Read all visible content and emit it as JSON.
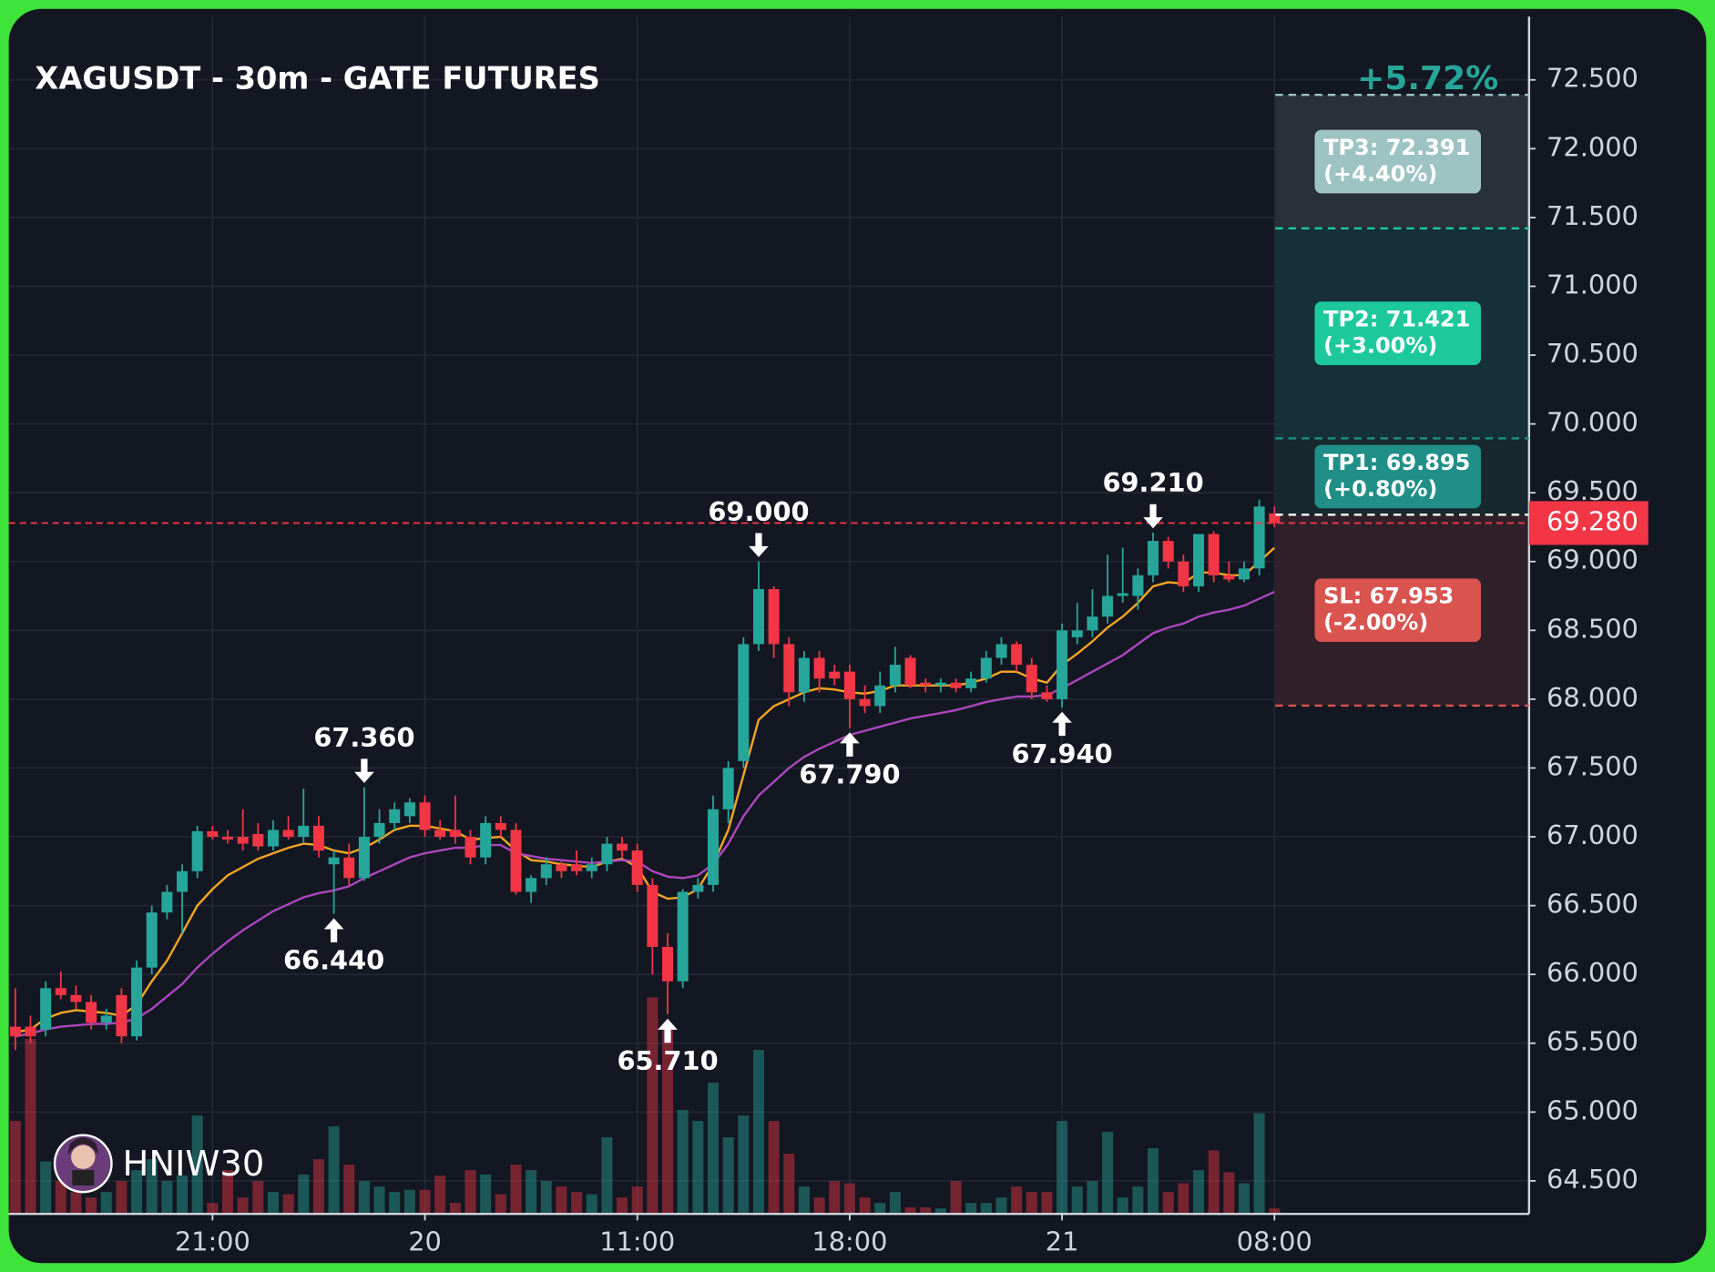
{
  "chart_data": {
    "type": "candlestick",
    "title": "XAGUSDT - 30m - GATE FUTURES",
    "categories": [
      null,
      null,
      null,
      null,
      null,
      null,
      null,
      null,
      null,
      null,
      null,
      null,
      null,
      "21:00",
      null,
      null,
      null,
      null,
      null,
      null,
      null,
      null,
      null,
      null,
      null,
      null,
      null,
      "20",
      null,
      null,
      null,
      null,
      null,
      null,
      null,
      null,
      null,
      null,
      null,
      null,
      null,
      "11:00",
      null,
      null,
      null,
      null,
      null,
      null,
      null,
      null,
      null,
      null,
      null,
      null,
      null,
      "18:00",
      null,
      null,
      null,
      null,
      null,
      null,
      null,
      null,
      null,
      null,
      null,
      null,
      null,
      "21",
      null,
      null,
      null,
      null,
      null,
      null,
      null,
      null,
      null,
      null,
      null,
      null,
      null,
      "08:00"
    ],
    "ohlc": [
      [
        65.62,
        65.9,
        65.45,
        65.55
      ],
      [
        65.62,
        65.7,
        65.5,
        65.55
      ],
      [
        65.6,
        65.95,
        65.55,
        65.9
      ],
      [
        65.9,
        66.02,
        65.82,
        65.85
      ],
      [
        65.85,
        65.92,
        65.75,
        65.8
      ],
      [
        65.8,
        65.85,
        65.6,
        65.65
      ],
      [
        65.65,
        65.75,
        65.6,
        65.7
      ],
      [
        65.85,
        65.9,
        65.5,
        65.55
      ],
      [
        65.55,
        66.1,
        65.52,
        66.05
      ],
      [
        66.05,
        66.5,
        66.0,
        66.45
      ],
      [
        66.45,
        66.65,
        66.4,
        66.6
      ],
      [
        66.6,
        66.8,
        66.3,
        66.75
      ],
      [
        66.75,
        67.08,
        66.7,
        67.04
      ],
      [
        67.04,
        67.08,
        66.98,
        67.0
      ],
      [
        67.0,
        67.05,
        66.95,
        66.98
      ],
      [
        67.0,
        67.2,
        66.9,
        66.95
      ],
      [
        67.02,
        67.1,
        66.9,
        66.93
      ],
      [
        66.93,
        67.12,
        66.9,
        67.05
      ],
      [
        67.05,
        67.15,
        66.98,
        67.0
      ],
      [
        67.0,
        67.35,
        66.95,
        67.08
      ],
      [
        67.08,
        67.15,
        66.85,
        66.9
      ],
      [
        66.8,
        66.9,
        66.44,
        66.85
      ],
      [
        66.85,
        66.95,
        66.65,
        66.7
      ],
      [
        66.7,
        67.36,
        66.68,
        67.0
      ],
      [
        67.0,
        67.2,
        66.95,
        67.1
      ],
      [
        67.1,
        67.25,
        67.05,
        67.2
      ],
      [
        67.15,
        67.28,
        67.1,
        67.25
      ],
      [
        67.25,
        67.3,
        67.0,
        67.05
      ],
      [
        67.05,
        67.12,
        66.98,
        67.0
      ],
      [
        67.05,
        67.3,
        66.95,
        67.0
      ],
      [
        67.0,
        67.05,
        66.8,
        66.85
      ],
      [
        66.85,
        67.15,
        66.8,
        67.1
      ],
      [
        67.1,
        67.15,
        67.0,
        67.05
      ],
      [
        67.05,
        67.1,
        66.58,
        66.6
      ],
      [
        66.6,
        66.72,
        66.52,
        66.7
      ],
      [
        66.7,
        66.85,
        66.65,
        66.8
      ],
      [
        66.8,
        66.82,
        66.7,
        66.75
      ],
      [
        66.8,
        66.9,
        66.72,
        66.75
      ],
      [
        66.75,
        66.85,
        66.7,
        66.8
      ],
      [
        66.8,
        67.0,
        66.75,
        66.95
      ],
      [
        66.95,
        67.0,
        66.85,
        66.9
      ],
      [
        66.9,
        66.95,
        66.6,
        66.65
      ],
      [
        66.65,
        66.7,
        66.0,
        66.2
      ],
      [
        66.2,
        66.3,
        65.71,
        65.95
      ],
      [
        65.95,
        66.62,
        65.9,
        66.6
      ],
      [
        66.6,
        66.7,
        66.55,
        66.65
      ],
      [
        66.65,
        67.3,
        66.6,
        67.2
      ],
      [
        67.2,
        67.55,
        67.1,
        67.5
      ],
      [
        67.55,
        68.45,
        67.5,
        68.4
      ],
      [
        68.4,
        69.0,
        68.35,
        68.8
      ],
      [
        68.8,
        68.82,
        68.3,
        68.4
      ],
      [
        68.4,
        68.45,
        67.95,
        68.05
      ],
      [
        68.05,
        68.35,
        67.98,
        68.3
      ],
      [
        68.3,
        68.35,
        68.05,
        68.15
      ],
      [
        68.2,
        68.25,
        68.1,
        68.15
      ],
      [
        68.2,
        68.25,
        67.79,
        68.0
      ],
      [
        68.0,
        68.1,
        67.9,
        67.95
      ],
      [
        67.95,
        68.2,
        67.9,
        68.1
      ],
      [
        68.1,
        68.38,
        68.05,
        68.25
      ],
      [
        68.3,
        68.32,
        68.08,
        68.1
      ],
      [
        68.12,
        68.15,
        68.05,
        68.1
      ],
      [
        68.1,
        68.15,
        68.05,
        68.12
      ],
      [
        68.12,
        68.15,
        68.05,
        68.08
      ],
      [
        68.08,
        68.2,
        68.05,
        68.15
      ],
      [
        68.15,
        68.35,
        68.12,
        68.3
      ],
      [
        68.3,
        68.45,
        68.25,
        68.4
      ],
      [
        68.4,
        68.42,
        68.2,
        68.25
      ],
      [
        68.25,
        68.3,
        68.0,
        68.05
      ],
      [
        68.05,
        68.1,
        67.98,
        68.0
      ],
      [
        68.0,
        68.55,
        67.94,
        68.5
      ],
      [
        68.45,
        68.7,
        68.4,
        68.5
      ],
      [
        68.5,
        68.8,
        68.45,
        68.6
      ],
      [
        68.6,
        69.05,
        68.55,
        68.75
      ],
      [
        68.75,
        69.1,
        68.7,
        68.77
      ],
      [
        68.75,
        68.95,
        68.65,
        68.9
      ],
      [
        68.9,
        69.21,
        68.85,
        69.15
      ],
      [
        69.15,
        69.18,
        68.95,
        69.0
      ],
      [
        69.0,
        69.05,
        68.78,
        68.82
      ],
      [
        68.82,
        69.2,
        68.78,
        69.2
      ],
      [
        69.2,
        69.22,
        68.85,
        68.9
      ],
      [
        68.9,
        69.0,
        68.85,
        68.87
      ],
      [
        68.87,
        69.0,
        68.85,
        68.95
      ],
      [
        68.95,
        69.45,
        68.9,
        69.4
      ],
      [
        69.35,
        69.4,
        69.25,
        69.28
      ]
    ],
    "up_color": "#26a69a",
    "down_color": "#f23645",
    "volume": [
      85,
      160,
      48,
      30,
      20,
      15,
      20,
      30,
      40,
      50,
      30,
      35,
      90,
      10,
      40,
      15,
      30,
      20,
      18,
      36,
      50,
      80,
      45,
      30,
      25,
      20,
      22,
      22,
      35,
      10,
      40,
      36,
      18,
      45,
      40,
      30,
      25,
      20,
      18,
      70,
      15,
      25,
      198,
      170,
      95,
      85,
      120,
      70,
      90,
      150,
      85,
      55,
      25,
      15,
      30,
      28,
      15,
      10,
      20,
      6,
      6,
      5,
      30,
      10,
      10,
      15,
      25,
      20,
      20,
      85,
      25,
      30,
      75,
      15,
      25,
      60,
      20,
      28,
      40,
      58,
      38,
      28,
      92,
      5
    ],
    "vlim": [
      0,
      200
    ],
    "lines": [
      {
        "color": "#f5a623",
        "values": [
          65.58,
          65.6,
          65.68,
          65.72,
          65.74,
          65.73,
          65.72,
          65.7,
          65.78,
          65.95,
          66.1,
          66.3,
          66.5,
          66.62,
          66.72,
          66.78,
          66.84,
          66.88,
          66.92,
          66.95,
          66.94,
          66.9,
          66.88,
          66.92,
          66.98,
          67.05,
          67.08,
          67.08,
          67.06,
          67.04,
          66.98,
          66.99,
          67.0,
          66.9,
          66.83,
          66.82,
          66.8,
          66.79,
          66.78,
          66.82,
          66.84,
          66.78,
          66.6,
          66.55,
          66.56,
          66.62,
          66.8,
          67.05,
          67.45,
          67.85,
          67.95,
          68.0,
          68.05,
          68.08,
          68.07,
          68.05,
          68.04,
          68.06,
          68.1,
          68.1,
          68.1,
          68.1,
          68.1,
          68.12,
          68.15,
          68.2,
          68.2,
          68.15,
          68.12,
          68.25,
          68.33,
          68.42,
          68.52,
          68.6,
          68.7,
          68.82,
          68.85,
          68.84,
          68.92,
          68.92,
          68.9,
          68.9,
          69.0,
          69.1
        ]
      },
      {
        "color": "#ab47bc",
        "values": [
          65.55,
          65.57,
          65.6,
          65.62,
          65.63,
          65.64,
          65.64,
          65.65,
          65.68,
          65.75,
          65.84,
          65.93,
          66.05,
          66.15,
          66.24,
          66.32,
          66.39,
          66.46,
          66.51,
          66.56,
          66.59,
          66.61,
          66.64,
          66.7,
          66.75,
          66.8,
          66.85,
          66.88,
          66.9,
          66.92,
          66.92,
          66.94,
          66.94,
          66.88,
          66.86,
          66.84,
          66.83,
          66.82,
          66.81,
          66.82,
          66.83,
          66.82,
          66.75,
          66.71,
          66.7,
          66.72,
          66.8,
          66.95,
          67.15,
          67.3,
          67.4,
          67.5,
          67.58,
          67.64,
          67.69,
          67.74,
          67.77,
          67.8,
          67.83,
          67.86,
          67.88,
          67.9,
          67.92,
          67.95,
          67.98,
          68.0,
          68.02,
          68.02,
          68.03,
          68.08,
          68.14,
          68.2,
          68.26,
          68.32,
          68.4,
          68.48,
          68.52,
          68.55,
          68.6,
          68.63,
          68.65,
          68.68,
          68.73,
          68.78
        ]
      }
    ],
    "markers": [
      {
        "bar": 21,
        "value": 66.44,
        "label": "66.440",
        "side": "low"
      },
      {
        "bar": 23,
        "value": 67.36,
        "label": "67.360",
        "side": "high"
      },
      {
        "bar": 43,
        "value": 65.71,
        "label": "65.710",
        "side": "low"
      },
      {
        "bar": 49,
        "value": 69.0,
        "label": "69.000",
        "side": "high"
      },
      {
        "bar": 55,
        "value": 67.79,
        "label": "67.790",
        "side": "low"
      },
      {
        "bar": 69,
        "value": 67.94,
        "label": "67.940",
        "side": "low"
      },
      {
        "bar": 75,
        "value": 69.21,
        "label": "69.210",
        "side": "high"
      }
    ],
    "levels": [
      {
        "label": "TP3: 72.391",
        "sublabel": "(+4.40%)",
        "value": 72.391,
        "color": "#9ec3c3",
        "zone": "#2a3038"
      },
      {
        "label": "TP2: 71.421",
        "sublabel": "(+3.00%)",
        "value": 71.421,
        "color": "#1dc99b",
        "zone": "#16303a"
      },
      {
        "label": "TP1: 69.895",
        "sublabel": "(+0.80%)",
        "value": 69.895,
        "color": "#1f8f87",
        "zone": "#17292f"
      },
      {
        "label": "SL: 67.953",
        "sublabel": "(-2.00%)",
        "value": 67.953,
        "color": "#d9534f",
        "zone": "#2f2029"
      }
    ],
    "entry": 69.34,
    "last_price": {
      "value": 69.28,
      "label": "69.280",
      "color": "#f23645"
    },
    "change": {
      "value": 5.72,
      "label": "+5.72%",
      "color": "#26a69a"
    },
    "watermark": "HNIW30",
    "ylim": [
      64.26,
      72.96
    ],
    "yticks": [
      {
        "value": 64.5,
        "label": "64.500"
      },
      {
        "value": 65,
        "label": "65.000"
      },
      {
        "value": 65.5,
        "label": "65.500"
      },
      {
        "value": 66,
        "label": "66.000"
      },
      {
        "value": 66.5,
        "label": "66.500"
      },
      {
        "value": 67,
        "label": "67.000"
      },
      {
        "value": 67.5,
        "label": "67.500"
      },
      {
        "value": 68,
        "label": "68.000"
      },
      {
        "value": 68.5,
        "label": "68.500"
      },
      {
        "value": 69,
        "label": "69.000"
      },
      {
        "value": 69.5,
        "label": "69.500"
      },
      {
        "value": 70,
        "label": "70.000"
      },
      {
        "value": 70.5,
        "label": "70.500"
      },
      {
        "value": 71,
        "label": "71.000"
      },
      {
        "value": 71.5,
        "label": "71.500"
      },
      {
        "value": 72,
        "label": "72.000"
      },
      {
        "value": 72.5,
        "label": "72.500"
      }
    ],
    "grid": true
  }
}
